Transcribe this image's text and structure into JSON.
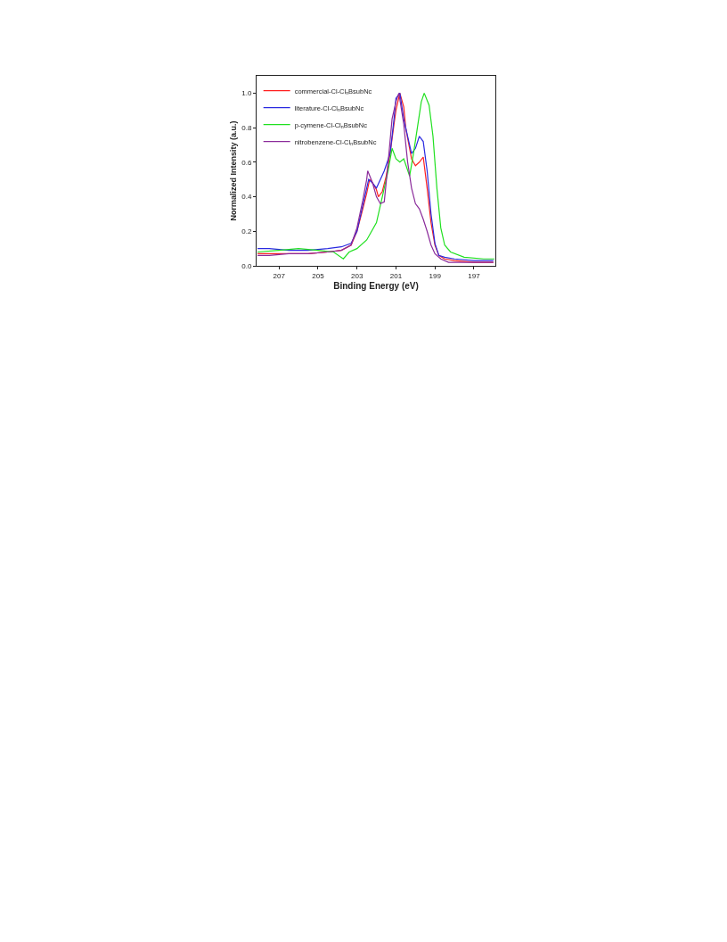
{
  "chart_data": {
    "type": "line",
    "xlabel": "Binding Energy (eV)",
    "ylabel": "Normalized Intensity (a.u.)",
    "xlim": [
      208.15,
      195.9
    ],
    "xticks": [
      207,
      205,
      203,
      201,
      199,
      197
    ],
    "ylim": [
      0,
      1.1
    ],
    "yticks": [
      {
        "value": 0,
        "label": "0.0"
      },
      0.2,
      0.4,
      0.6,
      0.8,
      {
        "value": 1,
        "label": "1.0"
      }
    ],
    "legend": "top left",
    "marker": "none",
    "line_style": "solid",
    "series": [
      {
        "name": "commercial-Cl-Cl$_{n}$BsubNc",
        "color": "#ff2020",
        "x": [
          208.1,
          207.5,
          206.5,
          205.5,
          204.5,
          203.8,
          203.3,
          203.0,
          202.7,
          202.5,
          202.35,
          202.2,
          202.0,
          201.9,
          201.7,
          201.5,
          201.3,
          201.1,
          201.0,
          200.8,
          200.6,
          200.5,
          200.3,
          200.2,
          200.0,
          199.8,
          199.6,
          199.4,
          199.2,
          199.0,
          198.8,
          198.5,
          198.0,
          197.0,
          196.0
        ],
        "values": [
          0.07,
          0.07,
          0.07,
          0.07,
          0.08,
          0.09,
          0.12,
          0.2,
          0.33,
          0.42,
          0.5,
          0.48,
          0.44,
          0.4,
          0.43,
          0.52,
          0.65,
          0.82,
          0.9,
          1.0,
          0.92,
          0.8,
          0.68,
          0.62,
          0.58,
          0.6,
          0.63,
          0.45,
          0.25,
          0.12,
          0.06,
          0.04,
          0.03,
          0.02,
          0.02
        ]
      },
      {
        "name": "literature-Cl-Cl$_{n}$BsubNc",
        "color": "#2a2ae0",
        "x": [
          208.1,
          207.5,
          206.5,
          205.5,
          204.5,
          203.8,
          203.3,
          203.0,
          202.7,
          202.5,
          202.4,
          202.2,
          202.0,
          201.8,
          201.6,
          201.3,
          201.1,
          201.0,
          200.8,
          200.6,
          200.4,
          200.2,
          200.0,
          199.8,
          199.6,
          199.4,
          199.2,
          199.0,
          198.8,
          198.5,
          198.0,
          197.0,
          196.0
        ],
        "values": [
          0.1,
          0.1,
          0.09,
          0.09,
          0.1,
          0.11,
          0.13,
          0.2,
          0.35,
          0.45,
          0.5,
          0.48,
          0.45,
          0.5,
          0.55,
          0.65,
          0.85,
          0.97,
          1.0,
          0.85,
          0.75,
          0.65,
          0.68,
          0.75,
          0.72,
          0.55,
          0.3,
          0.13,
          0.06,
          0.05,
          0.04,
          0.03,
          0.03
        ]
      },
      {
        "name": "p-cymene-Cl-Cl$_{n}$BsubNc",
        "color": "#20e020",
        "x": [
          208.1,
          207.0,
          206.0,
          205.0,
          204.2,
          203.7,
          203.4,
          203.0,
          202.5,
          202.0,
          201.7,
          201.4,
          201.2,
          201.0,
          200.8,
          200.6,
          200.3,
          200.1,
          199.9,
          199.7,
          199.55,
          199.3,
          199.1,
          198.9,
          198.7,
          198.5,
          198.2,
          197.5,
          196.5,
          195.95
        ],
        "values": [
          0.08,
          0.09,
          0.1,
          0.09,
          0.08,
          0.04,
          0.08,
          0.1,
          0.15,
          0.25,
          0.4,
          0.55,
          0.68,
          0.62,
          0.6,
          0.62,
          0.52,
          0.65,
          0.8,
          0.95,
          1.0,
          0.93,
          0.75,
          0.45,
          0.22,
          0.12,
          0.08,
          0.05,
          0.04,
          0.04
        ]
      },
      {
        "name": "nitrobenzene-Cl-Cl$_{n}$BsubNc",
        "color": "#8a2a9a",
        "x": [
          208.1,
          207.5,
          206.5,
          205.5,
          204.5,
          203.8,
          203.3,
          203.0,
          202.7,
          202.5,
          202.45,
          202.2,
          202.0,
          201.8,
          201.6,
          201.4,
          201.2,
          201.0,
          200.85,
          200.6,
          200.4,
          200.2,
          200.0,
          199.8,
          199.6,
          199.4,
          199.2,
          199.0,
          198.7,
          198.3,
          197.0,
          196.0
        ],
        "values": [
          0.06,
          0.06,
          0.07,
          0.07,
          0.08,
          0.09,
          0.12,
          0.22,
          0.38,
          0.5,
          0.55,
          0.48,
          0.4,
          0.36,
          0.37,
          0.6,
          0.85,
          0.95,
          1.0,
          0.82,
          0.6,
          0.45,
          0.36,
          0.33,
          0.27,
          0.2,
          0.12,
          0.07,
          0.04,
          0.02,
          0.02,
          0.02
        ]
      }
    ]
  }
}
